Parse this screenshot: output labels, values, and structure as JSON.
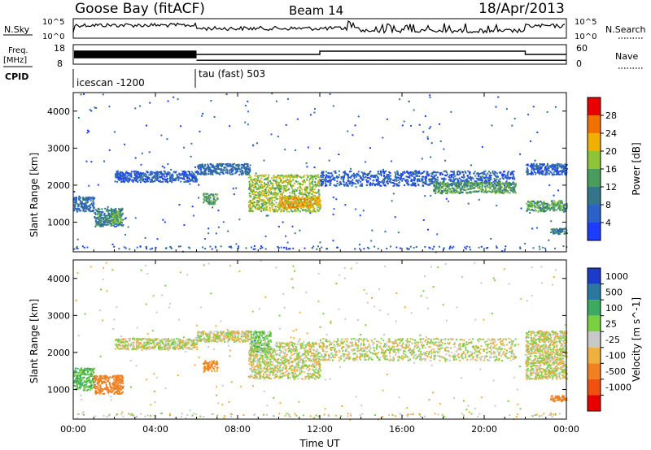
{
  "header": {
    "station": "Goose Bay (fitACF)",
    "beam": "Beam 14",
    "date": "18/Apr/2013"
  },
  "summary_panels": {
    "nsky_label": "N.Sky",
    "nsky_ticks": [
      "10^5",
      "10^0"
    ],
    "nsearch_label": "N.Search",
    "freq_label": "Freq.",
    "freq_unit": "[MHz]",
    "freq_ticks": [
      "18",
      "8"
    ],
    "nave_label": "Nave",
    "nave_ticks": [
      "60",
      "0"
    ],
    "cpid_label": "CPID",
    "cpid_segments": [
      {
        "name": "icescan -1200",
        "start_hour": 0
      },
      {
        "name": "tau (fast) 503",
        "start_hour": 6
      }
    ],
    "freq_trace": [
      {
        "from_hour": 0,
        "to_hour": 6,
        "mhz_low": 11,
        "mhz_high": 15,
        "rapid": true
      },
      {
        "from_hour": 6,
        "to_hour": 24,
        "mhz": 10
      }
    ],
    "nave_trace": [
      {
        "from_hour": 6,
        "to_hour": 12,
        "value": 30
      },
      {
        "from_hour": 12,
        "to_hour": 22,
        "value": 40
      },
      {
        "from_hour": 22,
        "to_hour": 24,
        "value": 30
      }
    ]
  },
  "chart_data": [
    {
      "type": "heatmap",
      "title": "Power",
      "ylabel": "Slant Range [km]",
      "xlabel": "Time UT",
      "xlim_hours": [
        0,
        24
      ],
      "ylim_km": [
        200,
        4500
      ],
      "yticks": [
        1000,
        2000,
        3000,
        4000
      ],
      "xticks": [
        "00:00",
        "04:00",
        "08:00",
        "12:00",
        "16:00",
        "20:00",
        "00:00"
      ],
      "colorbar": {
        "label": "Power [dB]",
        "ticks": [
          "4",
          "8",
          "12",
          "16",
          "20",
          "24",
          "28"
        ],
        "colors": [
          "#1c3cff",
          "#2a62c8",
          "#35758a",
          "#4a9c5c",
          "#8fc43a",
          "#f0b000",
          "#f07000",
          "#e80000"
        ]
      },
      "regions": [
        {
          "t0": 0.0,
          "t1": 1.0,
          "r0": 1300,
          "r1": 1700,
          "power_db": 8
        },
        {
          "t0": 1.0,
          "t1": 2.4,
          "r0": 900,
          "r1": 1400,
          "power_db": 10
        },
        {
          "t0": 1.8,
          "t1": 2.3,
          "r0": 1000,
          "r1": 1300,
          "power_db": 16
        },
        {
          "t0": 2.0,
          "t1": 6.0,
          "r0": 2100,
          "r1": 2400,
          "power_db": 6
        },
        {
          "t0": 6.0,
          "t1": 8.6,
          "r0": 2300,
          "r1": 2600,
          "power_db": 8
        },
        {
          "t0": 6.3,
          "t1": 7.0,
          "r0": 1500,
          "r1": 1800,
          "power_db": 14
        },
        {
          "t0": 8.5,
          "t1": 12.0,
          "r0": 1300,
          "r1": 2300,
          "power_db": 18
        },
        {
          "t0": 10.0,
          "t1": 12.0,
          "r0": 1400,
          "r1": 1700,
          "power_db": 22
        },
        {
          "t0": 12.0,
          "t1": 21.5,
          "r0": 2000,
          "r1": 2400,
          "power_db": 6
        },
        {
          "t0": 17.5,
          "t1": 21.5,
          "r0": 1800,
          "r1": 2100,
          "power_db": 14
        },
        {
          "t0": 22.0,
          "t1": 24.0,
          "r0": 1300,
          "r1": 1600,
          "power_db": 14
        },
        {
          "t0": 22.0,
          "t1": 24.0,
          "r0": 2300,
          "r1": 2600,
          "power_db": 6
        },
        {
          "t0": 23.2,
          "t1": 24.0,
          "r0": 700,
          "r1": 850,
          "power_db": 10
        }
      ]
    },
    {
      "type": "heatmap",
      "title": "Velocity",
      "ylabel": "Slant Range [km]",
      "xlabel": "Time UT",
      "xlim_hours": [
        0,
        24
      ],
      "ylim_km": [
        200,
        4500
      ],
      "yticks": [
        1000,
        2000,
        3000,
        4000
      ],
      "xticks": [
        "00:00",
        "04:00",
        "08:00",
        "12:00",
        "16:00",
        "20:00",
        "00:00"
      ],
      "colorbar": {
        "label": "Velocity [m s^-1]",
        "ticks": [
          "1000",
          "500",
          "100",
          "25",
          "-25",
          "-100",
          "-500",
          "-1000"
        ],
        "colors": [
          "#1c3cc8",
          "#2a78a0",
          "#3cab60",
          "#7ad040",
          "#c8c8c8",
          "#f0b040",
          "#f08020",
          "#f05010",
          "#e80000"
        ]
      },
      "regions": [
        {
          "t0": 0.0,
          "t1": 1.0,
          "r0": 1000,
          "r1": 1600,
          "velocity": 120
        },
        {
          "t0": 1.0,
          "t1": 2.4,
          "r0": 900,
          "r1": 1400,
          "velocity": -250
        },
        {
          "t0": 2.0,
          "t1": 6.0,
          "r0": 2100,
          "r1": 2400,
          "velocity": 0
        },
        {
          "t0": 6.0,
          "t1": 8.6,
          "r0": 2300,
          "r1": 2600,
          "velocity": 0
        },
        {
          "t0": 6.3,
          "t1": 7.0,
          "r0": 1500,
          "r1": 1800,
          "velocity": -150
        },
        {
          "t0": 8.5,
          "t1": 12.0,
          "r0": 1300,
          "r1": 2300,
          "velocity": 0
        },
        {
          "t0": 8.6,
          "t1": 9.6,
          "r0": 2000,
          "r1": 2600,
          "velocity": 60
        },
        {
          "t0": 12.0,
          "t1": 21.5,
          "r0": 1800,
          "r1": 2400,
          "velocity": 0
        },
        {
          "t0": 22.0,
          "t1": 24.0,
          "r0": 1300,
          "r1": 2600,
          "velocity": 0
        },
        {
          "t0": 23.2,
          "t1": 24.0,
          "r0": 700,
          "r1": 850,
          "velocity": -300
        }
      ]
    }
  ]
}
